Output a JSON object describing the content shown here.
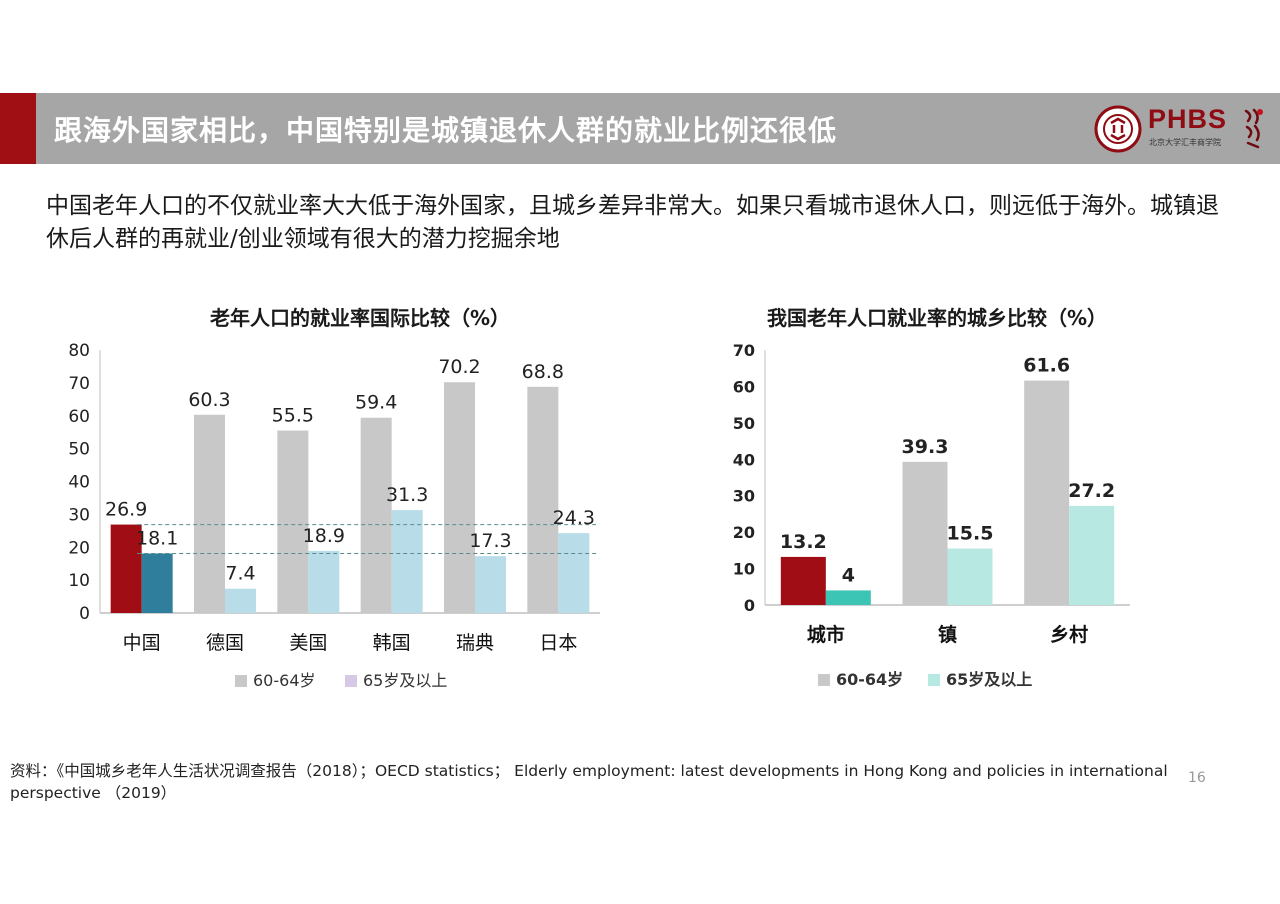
{
  "header": {
    "title": "跟海外国家相比，中国特别是城镇退休人群的就业比例还很低",
    "logo_text": "PHBS",
    "logo_sub": "北京大学汇丰商学院"
  },
  "intro_text": "中国老年人口的不仅就业率大大低于海外国家，且城乡差异非常大。如果只看城市退休人口，则远低于海外。城镇退休后人群的再就业/创业领域有很大的潜力挖掘余地",
  "chart_data": [
    {
      "type": "bar",
      "title": "老年人口的就业率国际比较（%）",
      "categories": [
        "中国",
        "德国",
        "美国",
        "韩国",
        "瑞典",
        "日本"
      ],
      "series": [
        {
          "name": "60-64岁",
          "values": [
            26.9,
            60.3,
            55.5,
            59.4,
            70.2,
            68.8
          ]
        },
        {
          "name": "65岁及以上",
          "values": [
            18.1,
            7.4,
            18.9,
            31.3,
            17.3,
            24.3
          ]
        }
      ],
      "ylim": [
        0,
        80
      ],
      "yticks": [
        0,
        10,
        20,
        30,
        40,
        50,
        60,
        70,
        80
      ],
      "reference_lines": [
        26.9,
        18.1
      ],
      "colors": {
        "series1": "#c8c8c8",
        "series2": "#b8dde8",
        "highlight1": "#a00d15",
        "highlight2": "#2f7f9c",
        "legend2": "#d6c9e6"
      }
    },
    {
      "type": "bar",
      "title": "我国老年人口就业率的城乡比较（%）",
      "categories": [
        "城市",
        "镇",
        "乡村"
      ],
      "series": [
        {
          "name": "60-64岁",
          "values": [
            13.2,
            39.3,
            61.6
          ]
        },
        {
          "name": "65岁及以上",
          "values": [
            4,
            15.5,
            27.2
          ]
        }
      ],
      "ylim": [
        0,
        70
      ],
      "yticks": [
        0,
        10,
        20,
        30,
        40,
        50,
        60,
        70
      ],
      "colors": {
        "series1": "#c8c8c8",
        "series2": "#b8e8e2",
        "highlight1": "#a00d15",
        "highlight2": "#3cc4b4"
      }
    }
  ],
  "footer": {
    "source": "资料：《中国城乡老年人生活状况调查报告（2018）；OECD statistics； Elderly employment: latest developments in Hong Kong and policies in international perspective （2019）",
    "page_number": "16"
  }
}
